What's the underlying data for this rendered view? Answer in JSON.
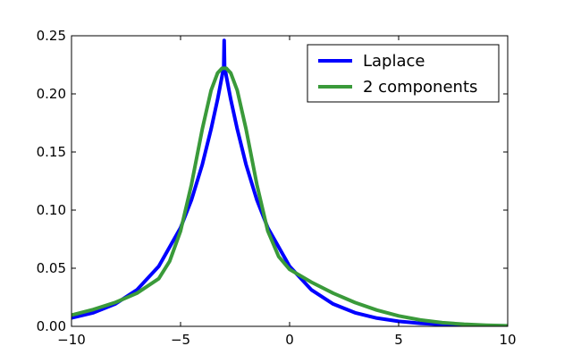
{
  "chart_data": {
    "type": "line",
    "title": "",
    "xlabel": "",
    "ylabel": "",
    "xlim": [
      -10,
      10
    ],
    "ylim": [
      0,
      0.25
    ],
    "x_ticks": [
      -10,
      -5,
      0,
      5,
      10
    ],
    "x_tick_labels": [
      "−10",
      "−5",
      "0",
      "5",
      "10"
    ],
    "y_ticks": [
      0.0,
      0.05,
      0.1,
      0.15,
      0.2,
      0.25
    ],
    "y_tick_labels": [
      "0.00",
      "0.05",
      "0.10",
      "0.15",
      "0.20",
      "0.25"
    ],
    "grid": false,
    "legend_position": "top-right",
    "series": [
      {
        "name": "Laplace",
        "color": "#0000ff",
        "points": [
          [
            -10,
            0.0073
          ],
          [
            -9,
            0.0117
          ],
          [
            -8,
            0.0192
          ],
          [
            -7,
            0.0314
          ],
          [
            -6,
            0.0516
          ],
          [
            -5,
            0.0848
          ],
          [
            -4.5,
            0.1087
          ],
          [
            -4,
            0.1394
          ],
          [
            -3.6,
            0.1697
          ],
          [
            -3.3,
            0.1954
          ],
          [
            -3.1,
            0.215
          ],
          [
            -3.02,
            0.2235
          ],
          [
            -3.0,
            0.246
          ],
          [
            -2.98,
            0.2235
          ],
          [
            -2.9,
            0.215
          ],
          [
            -2.7,
            0.1954
          ],
          [
            -2.4,
            0.1697
          ],
          [
            -2.0,
            0.1394
          ],
          [
            -1.5,
            0.1087
          ],
          [
            -1.0,
            0.0848
          ],
          [
            0,
            0.0516
          ],
          [
            1,
            0.0314
          ],
          [
            2,
            0.0192
          ],
          [
            3,
            0.0117
          ],
          [
            4,
            0.0071
          ],
          [
            5,
            0.0043
          ],
          [
            6,
            0.0026
          ],
          [
            7,
            0.0016
          ],
          [
            8,
            0.001
          ],
          [
            9,
            0.0006
          ],
          [
            10,
            0.0004
          ]
        ]
      },
      {
        "name": "2 components",
        "color": "#3a9a3a",
        "points": [
          [
            -10,
            0.0097
          ],
          [
            -9,
            0.0145
          ],
          [
            -8,
            0.0205
          ],
          [
            -7,
            0.0285
          ],
          [
            -6,
            0.041
          ],
          [
            -5.5,
            0.056
          ],
          [
            -5,
            0.082
          ],
          [
            -4.5,
            0.122
          ],
          [
            -4,
            0.17
          ],
          [
            -3.6,
            0.203
          ],
          [
            -3.3,
            0.218
          ],
          [
            -3.1,
            0.222
          ],
          [
            -2.9,
            0.222
          ],
          [
            -2.7,
            0.218
          ],
          [
            -2.4,
            0.203
          ],
          [
            -2.0,
            0.17
          ],
          [
            -1.5,
            0.122
          ],
          [
            -1.0,
            0.082
          ],
          [
            -0.5,
            0.06
          ],
          [
            0,
            0.049
          ],
          [
            1,
            0.038
          ],
          [
            2,
            0.0285
          ],
          [
            3,
            0.0205
          ],
          [
            4,
            0.014
          ],
          [
            5,
            0.009
          ],
          [
            6,
            0.0055
          ],
          [
            7,
            0.0032
          ],
          [
            8,
            0.0018
          ],
          [
            9,
            0.001
          ],
          [
            10,
            0.0005
          ]
        ]
      }
    ]
  }
}
